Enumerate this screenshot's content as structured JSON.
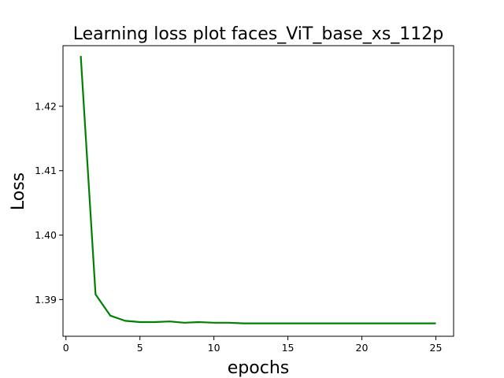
{
  "chart_data": {
    "type": "line",
    "title": "Learning loss plot faces_ViT_base_xs_112p",
    "xlabel": "epochs",
    "ylabel": "Loss",
    "xlim": [
      -0.2,
      26.2
    ],
    "ylim": [
      1.3843,
      1.4294
    ],
    "xticks": [
      0,
      5,
      10,
      15,
      20,
      25
    ],
    "yticks": [
      1.39,
      1.4,
      1.41,
      1.42
    ],
    "xtick_labels": [
      "0",
      "5",
      "10",
      "15",
      "20",
      "25"
    ],
    "ytick_labels": [
      "1.39",
      "1.40",
      "1.41",
      "1.42"
    ],
    "grid": false,
    "series": [
      {
        "color": "#008000",
        "x": [
          1,
          2,
          3,
          4,
          5,
          6,
          7,
          8,
          9,
          10,
          11,
          12,
          13,
          14,
          15,
          16,
          17,
          18,
          19,
          20,
          21,
          22,
          23,
          24,
          25
        ],
        "y": [
          1.4278,
          1.3908,
          1.3875,
          1.3867,
          1.3865,
          1.3865,
          1.3866,
          1.3864,
          1.3865,
          1.3864,
          1.3864,
          1.3863,
          1.3863,
          1.3863,
          1.3863,
          1.3863,
          1.3863,
          1.3863,
          1.3863,
          1.3863,
          1.3863,
          1.3863,
          1.3863,
          1.3863,
          1.3863
        ]
      }
    ]
  }
}
